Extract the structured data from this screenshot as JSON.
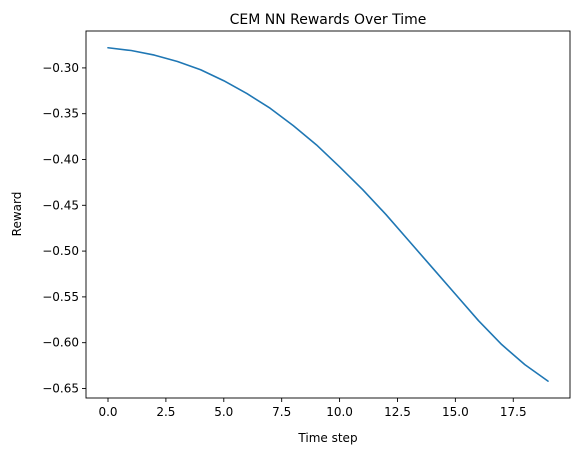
{
  "chart_data": {
    "type": "line",
    "title": "CEM NN Rewards Over Time",
    "xlabel": "Time step",
    "ylabel": "Reward",
    "xlim": [
      -0.95,
      19.95
    ],
    "ylim": [
      -0.6604,
      -0.2597
    ],
    "xticks": [
      0.0,
      2.5,
      5.0,
      7.5,
      10.0,
      12.5,
      15.0,
      17.5
    ],
    "xtick_labels": [
      "0.0",
      "2.5",
      "5.0",
      "7.5",
      "10.0",
      "12.5",
      "15.0",
      "17.5"
    ],
    "yticks": [
      -0.3,
      -0.35,
      -0.4,
      -0.45,
      -0.5,
      -0.55,
      -0.6,
      -0.65
    ],
    "ytick_labels": [
      "−0.30",
      "−0.35",
      "−0.40",
      "−0.45",
      "−0.50",
      "−0.55",
      "−0.60",
      "−0.65"
    ],
    "grid": false,
    "series": [
      {
        "color": "#1f77b4",
        "x": [
          0,
          1,
          2,
          3,
          4,
          5,
          6,
          7,
          8,
          9,
          10,
          11,
          12,
          13,
          14,
          15,
          16,
          17,
          18,
          19
        ],
        "y": [
          -0.278,
          -0.281,
          -0.286,
          -0.293,
          -0.302,
          -0.314,
          -0.328,
          -0.344,
          -0.363,
          -0.384,
          -0.408,
          -0.433,
          -0.46,
          -0.489,
          -0.518,
          -0.547,
          -0.576,
          -0.602,
          -0.624,
          -0.642
        ]
      }
    ]
  }
}
